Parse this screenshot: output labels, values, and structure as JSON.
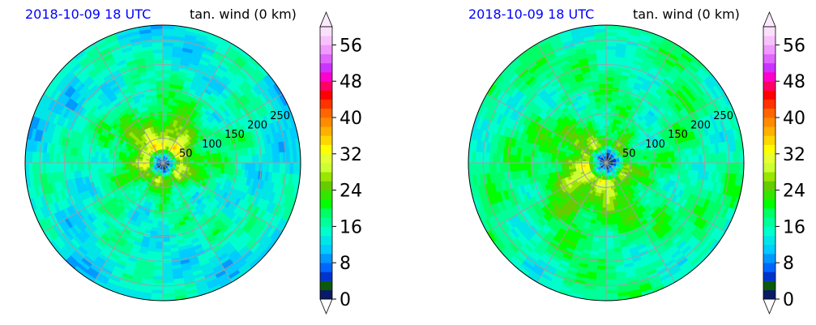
{
  "chart_data": [
    {
      "type": "heatmap",
      "projection": "polar",
      "date_title": "2018-10-09 18 UTC",
      "title": "tan. wind (0 km)",
      "radial_rings": [
        50,
        100,
        150,
        200,
        250
      ],
      "colorbar": {
        "ticks": [
          0,
          8,
          16,
          24,
          32,
          40,
          48,
          56
        ],
        "vmin": 0,
        "vmax": 60,
        "step": 2,
        "extend": "both",
        "colors": [
          "#0a1a66",
          "#0b5a0b",
          "#0033cc",
          "#0066ff",
          "#0099ff",
          "#00ccff",
          "#00e6e6",
          "#00ffcc",
          "#00ff99",
          "#00ff66",
          "#00ff00",
          "#33e600",
          "#66cc00",
          "#99e600",
          "#ccff33",
          "#e6ff33",
          "#ffff00",
          "#ffd700",
          "#ffb000",
          "#ff8c00",
          "#ff6600",
          "#ff3300",
          "#ff0000",
          "#ff0066",
          "#ff00cc",
          "#cc33ff",
          "#e066ff",
          "#f099ff",
          "#f7c2fb",
          "#fbe0fd"
        ]
      },
      "field": {
        "eye_value": 2,
        "peak_value": 32,
        "peak_radius_km": 35,
        "peak_direction": "north",
        "outer_value": 10,
        "max_radius_km": 280
      }
    },
    {
      "type": "heatmap",
      "projection": "polar",
      "date_title": "2018-10-09 18 UTC",
      "title": "tan. wind (0 km)",
      "radial_rings": [
        50,
        100,
        150,
        200,
        250
      ],
      "colorbar": {
        "ticks": [
          0,
          8,
          16,
          24,
          32,
          40,
          48,
          56
        ],
        "vmin": 0,
        "vmax": 60,
        "step": 2,
        "extend": "both",
        "colors": [
          "#0a1a66",
          "#0b5a0b",
          "#0033cc",
          "#0066ff",
          "#0099ff",
          "#00ccff",
          "#00e6e6",
          "#00ffcc",
          "#00ff99",
          "#00ff66",
          "#00ff00",
          "#33e600",
          "#66cc00",
          "#99e600",
          "#ccff33",
          "#e6ff33",
          "#ffff00",
          "#ffd700",
          "#ffb000",
          "#ff8c00",
          "#ff6600",
          "#ff3300",
          "#ff0000",
          "#ff0066",
          "#ff00cc",
          "#cc33ff",
          "#e066ff",
          "#f099ff",
          "#f7c2fb",
          "#fbe0fd"
        ]
      },
      "field": {
        "eye_value": 2,
        "peak_value": 28,
        "peak_radius_km": 40,
        "peak_direction": "southwest",
        "outer_value": 14,
        "max_radius_km": 280
      }
    }
  ]
}
